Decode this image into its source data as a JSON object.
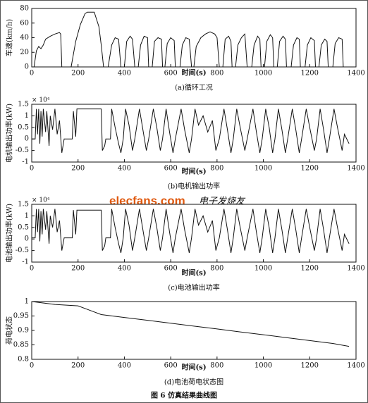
{
  "figure_caption": "图 6  仿真结果曲线图",
  "watermark": {
    "site": "elecfans.com",
    "text": "电子发烧友"
  },
  "chart_data": [
    {
      "type": "line",
      "ylabel": "车速(km/h)",
      "xlabel": "时间(s)",
      "caption": "(a)循环工况",
      "xlim": [
        0,
        1400
      ],
      "xticks": [
        0,
        200,
        400,
        600,
        800,
        1000,
        1200,
        1400
      ],
      "ylim": [
        0,
        80
      ],
      "yticks": [
        0,
        20,
        40,
        60,
        80
      ],
      "color": "#111111",
      "x": [
        0,
        10,
        20,
        30,
        40,
        50,
        60,
        80,
        100,
        120,
        125,
        130,
        170,
        190,
        210,
        230,
        240,
        270,
        280,
        290,
        300,
        310,
        330,
        345,
        360,
        375,
        385,
        400,
        410,
        425,
        435,
        445,
        460,
        470,
        485,
        500,
        505,
        520,
        530,
        545,
        560,
        565,
        575,
        585,
        600,
        615,
        620,
        640,
        650,
        665,
        680,
        690,
        700,
        710,
        730,
        750,
        770,
        790,
        800,
        810,
        825,
        835,
        850,
        860,
        865,
        880,
        890,
        905,
        920,
        930,
        950,
        960,
        975,
        985,
        990,
        1005,
        1015,
        1030,
        1040,
        1045,
        1060,
        1070,
        1085,
        1095,
        1100,
        1120,
        1130,
        1145,
        1155,
        1160,
        1180,
        1190,
        1205,
        1220,
        1225,
        1240,
        1250,
        1265,
        1275,
        1280,
        1300,
        1310,
        1325,
        1340,
        1345,
        1370
      ],
      "values": [
        0,
        0,
        22,
        28,
        25,
        30,
        38,
        42,
        45,
        47,
        45,
        0,
        0,
        35,
        58,
        73,
        75,
        75,
        65,
        55,
        30,
        0,
        0,
        30,
        40,
        38,
        0,
        0,
        35,
        42,
        38,
        0,
        0,
        30,
        42,
        40,
        0,
        0,
        35,
        40,
        38,
        0,
        0,
        32,
        40,
        36,
        0,
        0,
        30,
        40,
        38,
        0,
        0,
        28,
        40,
        45,
        48,
        45,
        40,
        0,
        0,
        38,
        42,
        35,
        0,
        0,
        30,
        40,
        45,
        0,
        0,
        30,
        42,
        38,
        0,
        0,
        35,
        44,
        40,
        0,
        0,
        35,
        42,
        38,
        0,
        0,
        30,
        40,
        38,
        0,
        0,
        30,
        40,
        36,
        0,
        0,
        30,
        38,
        35,
        0,
        0,
        32,
        40,
        38,
        0,
        0
      ]
    },
    {
      "type": "line",
      "ylabel": "电机输出功率(kW)",
      "xlabel": "时间(s)",
      "caption": "(b)电机输出功率",
      "y_multiplier": "× 10⁴",
      "xlim": [
        0,
        1400
      ],
      "xticks": [
        0,
        200,
        400,
        600,
        800,
        1000,
        1200,
        1400
      ],
      "ylim": [
        -1,
        1.5
      ],
      "yticks": [
        -1,
        -0.5,
        0,
        0.5,
        1,
        1.5
      ],
      "color": "#111111",
      "x": [
        0,
        15,
        20,
        25,
        30,
        35,
        40,
        45,
        50,
        60,
        65,
        75,
        80,
        90,
        100,
        110,
        120,
        130,
        140,
        175,
        180,
        190,
        195,
        300,
        305,
        315,
        320,
        340,
        345,
        360,
        375,
        385,
        395,
        405,
        420,
        435,
        445,
        465,
        480,
        495,
        505,
        525,
        540,
        555,
        565,
        580,
        595,
        610,
        620,
        645,
        660,
        680,
        690,
        705,
        720,
        740,
        760,
        780,
        795,
        810,
        830,
        845,
        860,
        870,
        885,
        900,
        920,
        930,
        955,
        970,
        985,
        995,
        1010,
        1025,
        1040,
        1050,
        1065,
        1080,
        1095,
        1105,
        1125,
        1140,
        1155,
        1165,
        1185,
        1200,
        1220,
        1230,
        1245,
        1260,
        1275,
        1285,
        1305,
        1320,
        1340,
        1350,
        1370
      ],
      "values": [
        0,
        0,
        1.3,
        0.2,
        1.3,
        -0.2,
        1.2,
        0.1,
        1.3,
        0.3,
        1.2,
        -0.3,
        1.0,
        0.4,
        1.3,
        0.2,
        0.8,
        -0.6,
        0,
        0,
        1.2,
        0.1,
        1.3,
        1.3,
        -0.5,
        -0.3,
        0,
        0,
        1.3,
        0.5,
        -0.2,
        -0.6,
        0,
        1.3,
        0.6,
        -0.5,
        0,
        1.3,
        0.4,
        -0.5,
        0,
        1.3,
        0.5,
        -0.5,
        0,
        1.3,
        0.3,
        -0.6,
        0,
        1.3,
        0.4,
        -0.6,
        0,
        1.3,
        0.6,
        1.0,
        0.3,
        0.8,
        -0.5,
        0,
        1.3,
        0.4,
        -0.6,
        0,
        1.3,
        0.5,
        -0.5,
        0,
        1.3,
        0.3,
        -0.6,
        0,
        1.3,
        0.5,
        -0.6,
        0,
        1.3,
        0.4,
        -0.6,
        0,
        1.3,
        0.4,
        -0.6,
        0,
        1.3,
        0.5,
        -0.5,
        0,
        1.3,
        0.4,
        -0.6,
        0,
        1.3,
        0.5,
        -0.5,
        0.2,
        -0.2
      ]
    },
    {
      "type": "line",
      "ylabel": "电池输出功率(kW)",
      "xlabel": "时间(s)",
      "caption": "(c)电池输出功率",
      "y_multiplier": "× 10⁴",
      "xlim": [
        0,
        1400
      ],
      "xticks": [
        0,
        200,
        400,
        600,
        800,
        1000,
        1200,
        1400
      ],
      "ylim": [
        -1,
        1.5
      ],
      "yticks": [
        -1,
        -0.5,
        0,
        0.5,
        1,
        1.5
      ],
      "color": "#111111",
      "x": [
        0,
        15,
        20,
        25,
        30,
        35,
        40,
        45,
        50,
        60,
        65,
        75,
        80,
        90,
        100,
        110,
        120,
        130,
        140,
        175,
        180,
        190,
        195,
        300,
        305,
        315,
        320,
        340,
        345,
        360,
        375,
        385,
        395,
        405,
        420,
        435,
        445,
        465,
        480,
        495,
        505,
        525,
        540,
        555,
        565,
        580,
        595,
        610,
        620,
        645,
        660,
        680,
        690,
        705,
        720,
        740,
        760,
        780,
        795,
        810,
        830,
        845,
        860,
        870,
        885,
        900,
        920,
        930,
        955,
        970,
        985,
        995,
        1010,
        1025,
        1040,
        1050,
        1065,
        1080,
        1095,
        1105,
        1125,
        1140,
        1155,
        1165,
        1185,
        1200,
        1220,
        1230,
        1245,
        1260,
        1275,
        1285,
        1305,
        1320,
        1340,
        1350,
        1370
      ],
      "values": [
        0.05,
        0.05,
        1.3,
        0.3,
        1.3,
        -0.1,
        1.2,
        0.2,
        1.3,
        0.4,
        1.2,
        -0.2,
        1.0,
        0.5,
        1.3,
        0.3,
        0.8,
        -0.5,
        0.05,
        0.05,
        1.25,
        0.2,
        1.25,
        1.25,
        -0.5,
        -0.3,
        0.05,
        0.05,
        1.3,
        0.5,
        -0.2,
        -0.6,
        0.05,
        1.3,
        0.6,
        -0.5,
        0.05,
        1.3,
        0.4,
        -0.5,
        0.05,
        1.3,
        0.5,
        -0.5,
        0.05,
        1.3,
        0.3,
        -0.6,
        0.05,
        1.3,
        0.4,
        -0.6,
        0.05,
        1.3,
        0.6,
        1.0,
        0.3,
        0.8,
        -0.5,
        0.05,
        1.3,
        0.4,
        -0.6,
        0.05,
        1.3,
        0.5,
        -0.5,
        0.05,
        1.3,
        0.3,
        -0.6,
        0.05,
        1.3,
        0.5,
        -0.6,
        0.05,
        1.3,
        0.4,
        -0.6,
        0.05,
        1.3,
        0.4,
        -0.6,
        0.05,
        1.3,
        0.5,
        -0.5,
        0.05,
        1.3,
        0.4,
        -0.6,
        0.05,
        1.3,
        0.5,
        -0.5,
        0.2,
        -0.2
      ]
    },
    {
      "type": "line",
      "ylabel": "荷电状态",
      "xlabel": "时间(s)",
      "caption": "(d)电池荷电状态图",
      "xlim": [
        0,
        1400
      ],
      "xticks": [
        0,
        200,
        400,
        600,
        800,
        1000,
        1200,
        1400
      ],
      "ylim": [
        0.8,
        1
      ],
      "yticks": [
        0.8,
        0.85,
        0.9,
        0.95,
        1
      ],
      "color": "#111111",
      "x": [
        0,
        100,
        200,
        300,
        400,
        500,
        600,
        700,
        800,
        900,
        1000,
        1100,
        1200,
        1300,
        1370
      ],
      "values": [
        1,
        0.99,
        0.985,
        0.955,
        0.945,
        0.935,
        0.925,
        0.915,
        0.905,
        0.895,
        0.885,
        0.875,
        0.865,
        0.855,
        0.845
      ]
    }
  ]
}
